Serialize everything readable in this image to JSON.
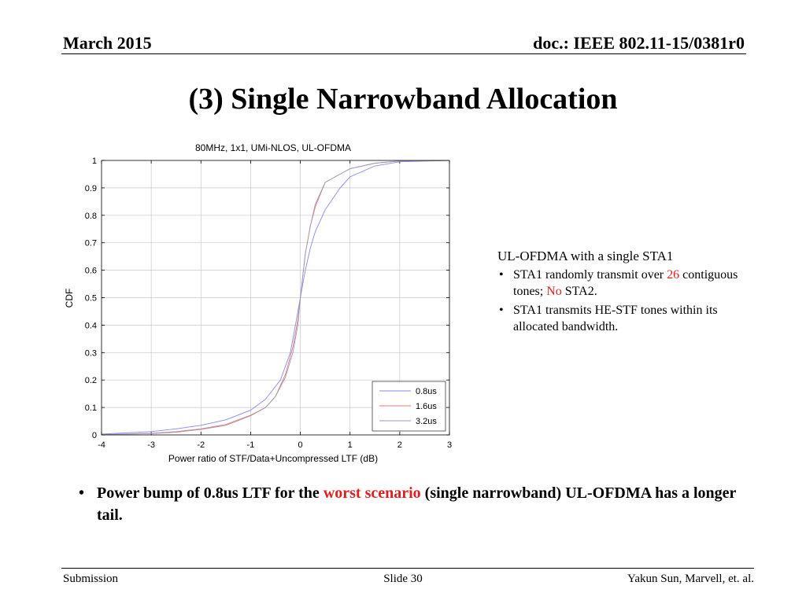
{
  "header": {
    "left": "March 2015",
    "right": "doc.: IEEE 802.11-15/0381r0"
  },
  "title": "(3) Single Narrowband Allocation",
  "side_panel": {
    "heading": "UL-OFDMA with a single STA1",
    "bullet1": {
      "pre": "STA1 randomly transmit over ",
      "red1": "26",
      "mid": " contiguous tones; ",
      "red2": "No",
      "post": " STA2."
    },
    "bullet2": "STA1 transmits HE-STF tones within its allocated bandwidth."
  },
  "note": {
    "pre": "Power bump of 0.8us LTF for the ",
    "red": "worst scenario",
    "post": " (single narrowband) UL-OFDMA has a longer tail."
  },
  "footer": {
    "left": "Submission",
    "center": "Slide 30",
    "right": "Yakun Sun,  Marvell, et. al."
  },
  "chart_data": {
    "type": "line",
    "title": "80MHz, 1x1, UMi-NLOS, UL-OFDMA",
    "xlabel": "Power ratio of STF/Data+Uncompressed LTF (dB)",
    "ylabel": "CDF",
    "xlim": [
      -4,
      3
    ],
    "ylim": [
      0,
      1
    ],
    "xticks": [
      -4,
      -3,
      -2,
      -1,
      0,
      1,
      2,
      3
    ],
    "yticks": [
      0,
      0.1,
      0.2,
      0.3,
      0.4,
      0.5,
      0.6,
      0.7,
      0.8,
      0.9,
      1
    ],
    "grid": true,
    "legend_position": "bottom-right",
    "series": [
      {
        "name": "0.8us",
        "color": "#8888ee",
        "x": [
          -4,
          -3,
          -2.5,
          -2,
          -1.5,
          -1,
          -0.7,
          -0.4,
          -0.2,
          -0.1,
          0,
          0.05,
          0.1,
          0.2,
          0.3,
          0.5,
          0.8,
          1,
          1.5,
          2,
          3
        ],
        "y": [
          0.003,
          0.012,
          0.022,
          0.035,
          0.055,
          0.09,
          0.13,
          0.2,
          0.3,
          0.4,
          0.5,
          0.55,
          0.6,
          0.68,
          0.74,
          0.82,
          0.9,
          0.94,
          0.98,
          0.995,
          1
        ]
      },
      {
        "name": "1.6us",
        "color": "#e87878",
        "x": [
          -4,
          -3,
          -2.5,
          -2,
          -1.5,
          -1,
          -0.7,
          -0.5,
          -0.3,
          -0.15,
          -0.05,
          0,
          0.05,
          0.1,
          0.2,
          0.3,
          0.5,
          1,
          1.5,
          2,
          3
        ],
        "y": [
          0.001,
          0.005,
          0.01,
          0.02,
          0.035,
          0.07,
          0.1,
          0.14,
          0.22,
          0.32,
          0.42,
          0.5,
          0.58,
          0.66,
          0.76,
          0.83,
          0.92,
          0.97,
          0.99,
          0.998,
          1
        ]
      },
      {
        "name": "3.2us",
        "color": "#9999bb",
        "x": [
          -4,
          -3,
          -2.5,
          -2,
          -1.5,
          -1,
          -0.7,
          -0.5,
          -0.3,
          -0.15,
          -0.05,
          0,
          0.05,
          0.1,
          0.2,
          0.3,
          0.5,
          1,
          1.5,
          2,
          3
        ],
        "y": [
          0.001,
          0.006,
          0.012,
          0.022,
          0.038,
          0.072,
          0.1,
          0.14,
          0.21,
          0.3,
          0.4,
          0.5,
          0.58,
          0.66,
          0.76,
          0.84,
          0.92,
          0.97,
          0.99,
          0.998,
          1
        ]
      }
    ]
  }
}
